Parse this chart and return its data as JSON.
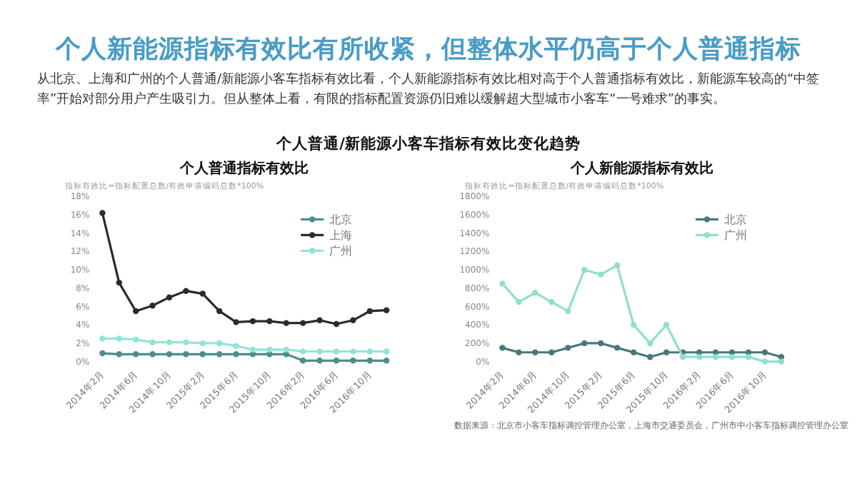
{
  "chart_data": [
    {
      "type": "other",
      "title": "个人新能源指标有效比有所收紧，但整体水平仍高于个人普通指标",
      "subtitle": "从北京、上海和广州的个人普通/新能源小客车指标有效比看，个人新能源指标有效比相对高于个人普通指标有效比，新能源车较高的“中签率”开始对部分用户产生吸引力。但从整体上看，有限的指标配置资源仍旧难以缓解超大型城市小客车“一号难求”的事实。",
      "annotations": [
        "个人普通/新能源小客车指标有效比变化趋势"
      ]
    },
    {
      "type": "line",
      "title": "个人普通指标有效比",
      "ylabel": "指标有效比=指标配置总数/有效申请编码总数*100%",
      "categories": [
        "2014年2月",
        null,
        "2014年6月",
        null,
        "2014年10月",
        null,
        "2015年2月",
        null,
        "2015年6月",
        null,
        "2015年10月",
        null,
        "2016年2月",
        null,
        "2016年6月",
        null,
        "2016年10月",
        null
      ],
      "series": [
        {
          "name": "北京",
          "color": "#4e8d8d",
          "values": [
            0.9,
            0.8,
            0.8,
            0.8,
            0.8,
            0.8,
            0.8,
            0.8,
            0.8,
            0.8,
            0.8,
            0.8,
            0.1,
            0.1,
            0.1,
            0.1,
            0.1,
            0.1
          ]
        },
        {
          "name": "上海",
          "color": "#2b2b2b",
          "values": [
            16.2,
            8.6,
            5.5,
            6.1,
            7.0,
            7.7,
            7.4,
            5.5,
            4.3,
            4.4,
            4.4,
            4.2,
            4.2,
            4.5,
            4.1,
            4.5,
            5.5,
            5.6
          ]
        },
        {
          "name": "广州",
          "color": "#8ee6d6",
          "values": [
            2.5,
            2.5,
            2.4,
            2.1,
            2.1,
            2.1,
            2.0,
            2.0,
            1.7,
            1.3,
            1.3,
            1.3,
            1.1,
            1.1,
            1.1,
            1.1,
            1.1,
            1.1
          ]
        }
      ],
      "ylim": [
        0,
        18
      ],
      "yticks": [
        {
          "value": 0,
          "label": "0%"
        },
        {
          "value": 2,
          "label": "2%"
        },
        {
          "value": 4,
          "label": "4%"
        },
        {
          "value": 6,
          "label": "6%"
        },
        {
          "value": 8,
          "label": "8%"
        },
        {
          "value": 10,
          "label": "10%"
        },
        {
          "value": 12,
          "label": "12%"
        },
        {
          "value": 14,
          "label": "14%"
        },
        {
          "value": 16,
          "label": "16%"
        },
        {
          "value": 18,
          "label": "18%"
        }
      ],
      "marker": "circle",
      "grid": false,
      "legend": "top right"
    },
    {
      "type": "line",
      "title": "个人新能源指标有效比",
      "ylabel": "指标有效比=指标配置总数/有效申请编码总数*100%",
      "categories": [
        "2014年2月",
        null,
        "2014年6月",
        null,
        "2014年10月",
        null,
        "2015年2月",
        null,
        "2015年6月",
        null,
        "2015年10月",
        null,
        "2016年2月",
        null,
        "2016年6月",
        null,
        "2016年10月",
        null
      ],
      "series": [
        {
          "name": "北京",
          "color": "#4a7878",
          "values": [
            150,
            100,
            100,
            100,
            150,
            200,
            200,
            150,
            100,
            50,
            100,
            100,
            100,
            100,
            100,
            100,
            100,
            50
          ]
        },
        {
          "name": "广州",
          "color": "#8fe0cc",
          "values": [
            850,
            650,
            750,
            650,
            550,
            1000,
            950,
            1050,
            400,
            200,
            400,
            50,
            50,
            50,
            50,
            50,
            0,
            0
          ]
        }
      ],
      "ylim": [
        0,
        1800
      ],
      "yticks": [
        {
          "value": 0,
          "label": "0%"
        },
        {
          "value": 200,
          "label": "200%"
        },
        {
          "value": 400,
          "label": "400%"
        },
        {
          "value": 600,
          "label": "600%"
        },
        {
          "value": 800,
          "label": "800%"
        },
        {
          "value": 1000,
          "label": "1000%"
        },
        {
          "value": 1200,
          "label": "1200%"
        },
        {
          "value": 1400,
          "label": "1400%"
        },
        {
          "value": 1600,
          "label": "1600%"
        },
        {
          "value": 1800,
          "label": "1800%"
        }
      ],
      "marker": "circle",
      "grid": false,
      "legend": "top right",
      "annotations": [
        "数据来源：北京市小客车指标调控管理办公室，上海市交通委员会，广州市中小客车指标调控管理办公室"
      ]
    }
  ]
}
